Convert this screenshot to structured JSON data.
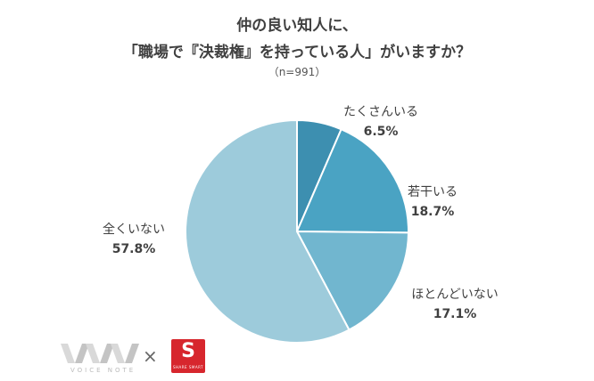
{
  "title_line1": "仲の良い知人に、",
  "title_line2": "「職場で『決裁権』を持っている人」がいますか？",
  "sample_note": "（n=991）",
  "chart_data": {
    "type": "pie",
    "title": "仲の良い知人に、「職場で『決裁権』を持っている人」がいますか？",
    "slices": [
      {
        "label": "たくさんいる",
        "value": 6.5,
        "value_label": "6.5%",
        "color": "#3d8fb0"
      },
      {
        "label": "若干いる",
        "value": 18.7,
        "value_label": "18.7%",
        "color": "#4aa3c3"
      },
      {
        "label": "ほとんどいない",
        "value": 17.1,
        "value_label": "17.1%",
        "color": "#71b6cf"
      },
      {
        "label": "全くいない",
        "value": 57.8,
        "value_label": "57.8%",
        "color": "#9dcbdb"
      }
    ],
    "start": "12 o'clock",
    "direction": "clockwise"
  },
  "logos": {
    "left_logo_text": "VOICE NOTE",
    "separator": "×",
    "right_logo_letter": "S",
    "right_logo_subtext": "SHARE SMART"
  }
}
